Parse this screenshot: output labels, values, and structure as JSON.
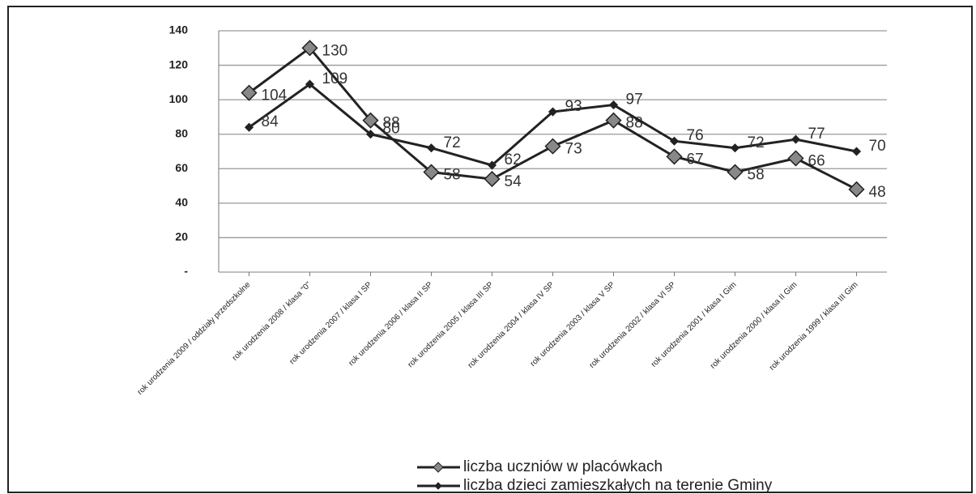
{
  "chart_data": {
    "type": "line",
    "categories": [
      "rok urodzenia 2009 / oddziały przedszkolne",
      "rok urodzenia 2008 / klasa \"0\"",
      "rok urodzenia 2007 / klasa I SP",
      "rok urodzenia 2006 / klasa II SP",
      "rok urodzenia 2005 / klasa III SP",
      "rok urodzenia 2004 / klasa IV SP",
      "rok urodzenia 2003 / klasa V SP",
      "rok urodzenia 2002 / klasa VI SP",
      "rok urodzenia 2001 / klasa I Gim",
      "rok urodzenia 2000 / klasa II Gim",
      "rok urodzenia 1999 / klasa III Gim"
    ],
    "series": [
      {
        "name": "liczba uczniów w placówkach",
        "color": "#222222",
        "marker": "large-diamond",
        "values": [
          104,
          130,
          88,
          58,
          54,
          73,
          88,
          67,
          58,
          66,
          48
        ]
      },
      {
        "name": "liczba dzieci zamieszkałych na terenie Gminy",
        "color": "#222222",
        "marker": "small-diamond",
        "values": [
          84,
          109,
          80,
          72,
          62,
          93,
          97,
          76,
          72,
          77,
          70
        ]
      }
    ],
    "ylim": [
      0,
      140
    ],
    "yticks": [
      {
        "value": 0,
        "label": "-"
      },
      20,
      40,
      60,
      80,
      100,
      120,
      140
    ],
    "grid": true,
    "legend": "bottom"
  }
}
